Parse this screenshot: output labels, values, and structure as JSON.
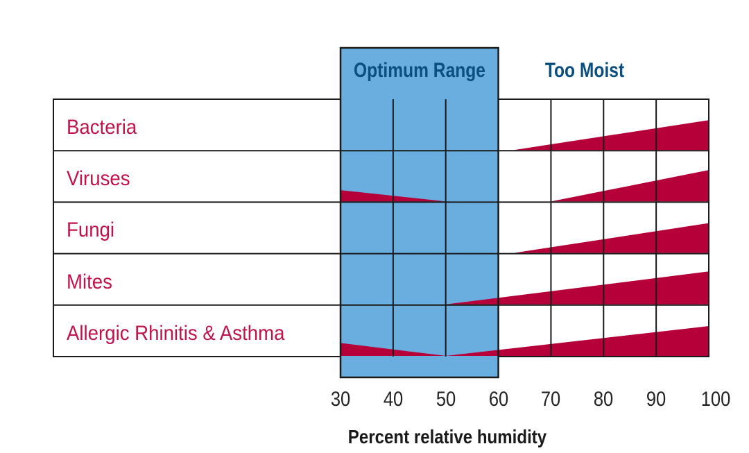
{
  "chart_data": {
    "type": "area",
    "xlabel": "Percent relative humidity",
    "x_ticks": [
      30,
      40,
      50,
      60,
      70,
      80,
      90,
      100
    ],
    "xlim": [
      30,
      100
    ],
    "bands": [
      {
        "label": "Optimum Range",
        "from": 30,
        "to": 60,
        "color": "#6aaee0"
      },
      {
        "label": "Too Moist",
        "from": 60,
        "to": 100,
        "color": "#ffffff"
      }
    ],
    "value_scale": "relative severity (0 to 1 of row height, unlabeled)",
    "series": [
      {
        "name": "Bacteria",
        "points": [
          [
            63,
            0
          ],
          [
            100,
            0.58
          ]
        ]
      },
      {
        "name": "Viruses",
        "points": [
          [
            30,
            0.22
          ],
          [
            50,
            0
          ],
          [
            70,
            0
          ],
          [
            100,
            0.61
          ]
        ]
      },
      {
        "name": "Fungi",
        "points": [
          [
            63,
            0
          ],
          [
            100,
            0.58
          ]
        ]
      },
      {
        "name": "Mites",
        "points": [
          [
            50,
            0
          ],
          [
            100,
            0.64
          ]
        ]
      },
      {
        "name": "Allergic Rhinitis & Asthma",
        "points": [
          [
            30,
            0.25
          ],
          [
            50,
            0
          ],
          [
            100,
            0.58
          ]
        ]
      }
    ],
    "colors": {
      "series": "#b5003a",
      "label": "#c0134a",
      "header": "#0a4f80",
      "band_border": "#1a1a1a",
      "grid": "#1a1a1a"
    }
  }
}
